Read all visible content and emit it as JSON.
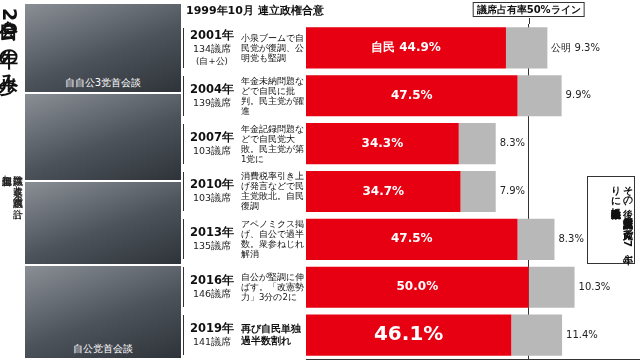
{
  "title": "自公20年の歩み",
  "note": [
    "議席数は非改選と改選議員の合計。",
    "追加公認含む"
  ],
  "header": "1999年10月 連立政権合意",
  "photo_captions": [
    "自自公3党首会談",
    "自公党首会談"
  ],
  "rows": [
    {
      "seats": "134議席",
      "sub": "(自+公)",
      "text": "小泉ブームで自民党が復調、公明党も堅調"
    },
    {
      "seats": "139議席",
      "text": "年金未納問題などで自民に批判。民主党が躍進"
    },
    {
      "seats": "103議席",
      "text": "年金記録問題などで自民党大敗。民主党が第1党に"
    },
    {
      "seats": "103議席",
      "text": "消費税率引き上げ発言などで民主党敗北。自民復調"
    },
    {
      "seats": "135議席",
      "text": "アベノミクス掲げ、自公で過半数。衆参ねじれ解消"
    },
    {
      "seats": "146議席",
      "text": "自公が堅調に伸ばす。「改憲勢力」3分の2に"
    },
    {
      "seats": "141議席",
      "text": "再び自民単独過半数割れ"
    }
  ],
  "chart_data": {
    "type": "bar",
    "orientation": "horizontal",
    "stacked": true,
    "categories": [
      "2001年",
      "2004年",
      "2007年",
      "2010年",
      "2013年",
      "2016年",
      "2019年"
    ],
    "series": [
      {
        "name": "自民",
        "color": "#e60012",
        "values": [
          44.9,
          47.5,
          34.3,
          34.7,
          47.5,
          50.0,
          46.1
        ],
        "value_labels": [
          "自民 44.9%",
          "47.5%",
          "34.3%",
          "34.7%",
          "47.5%",
          "50.0%",
          "46.1%"
        ]
      },
      {
        "name": "公明",
        "color": "#b8b8b8",
        "values": [
          9.3,
          9.9,
          8.3,
          7.9,
          8.3,
          10.3,
          11.4
        ],
        "value_labels": [
          "公明 9.3%",
          "9.9%",
          "8.3%",
          "7.9%",
          "8.3%",
          "10.3%",
          "11.4%"
        ]
      }
    ],
    "xlim": [
      0,
      75
    ],
    "xticks": [
      50
    ],
    "grid": true,
    "tick_labels": false,
    "data_labels": true,
    "line_label": "議席占有率50%ライン",
    "annotation": "その後、無所属議員の入党で27年ぶりに自民単独過半数に"
  }
}
